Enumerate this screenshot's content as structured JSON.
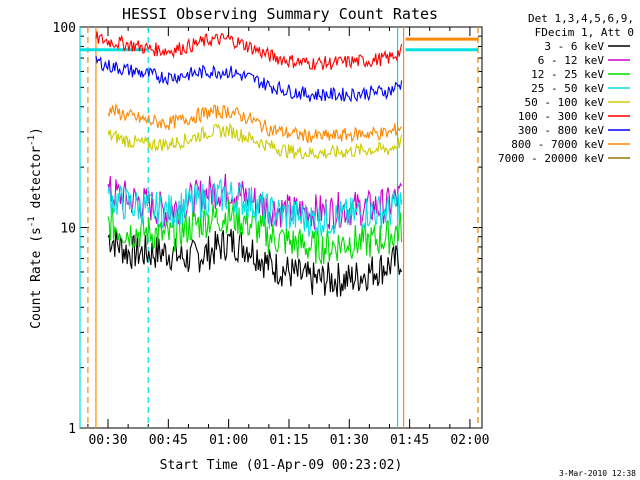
{
  "chart_data": {
    "type": "line",
    "title": "HESSI Observing Summary Count Rates",
    "xlabel": "Start Time (01-Apr-09 00:23:02)",
    "ylabel": "Count Rate (s",
    "ylabel_sup": "-1",
    "ylabel_tail": " detector",
    "ylabel_sup2": "-1",
    "ylabel_end": ")",
    "y_scale": "log",
    "ylim": [
      1,
      100
    ],
    "xlim": [
      "00:23:02",
      "02:03:00"
    ],
    "x_ticks": [
      "00:30",
      "00:45",
      "01:00",
      "01:15",
      "01:30",
      "01:45",
      "02:00"
    ],
    "y_ticks": [
      "1",
      "10",
      "100"
    ],
    "legend_header": [
      "Det 1,3,4,5,6,9,",
      "FDecim 1, Att 0"
    ],
    "legend_position": "right",
    "series": [
      {
        "name": "3 - 6 keV",
        "color": "#000000",
        "x": [
          "00:30",
          "00:35",
          "00:40",
          "00:45",
          "00:50",
          "00:55",
          "01:00",
          "01:05",
          "01:10",
          "01:15",
          "01:20",
          "01:25",
          "01:30",
          "01:35",
          "01:40",
          "01:43"
        ],
        "y": [
          9.0,
          7.5,
          7.5,
          7.5,
          7.0,
          7.5,
          8.5,
          8.0,
          6.5,
          6.0,
          5.5,
          5.5,
          5.5,
          6.0,
          6.5,
          7.0
        ]
      },
      {
        "name": "6 - 12 keV",
        "color": "#cc00cc",
        "x": [
          "00:30",
          "00:35",
          "00:40",
          "00:45",
          "00:50",
          "00:55",
          "01:00",
          "01:05",
          "01:10",
          "01:15",
          "01:20",
          "01:25",
          "01:30",
          "01:35",
          "01:40",
          "01:43"
        ],
        "y": [
          15.0,
          14.0,
          13.0,
          12.0,
          13.5,
          15.0,
          15.5,
          14.0,
          12.5,
          12.0,
          12.0,
          12.0,
          12.5,
          12.5,
          13.0,
          14.5
        ]
      },
      {
        "name": "12 - 25 keV",
        "color": "#00dd00",
        "x": [
          "00:30",
          "00:35",
          "00:40",
          "00:45",
          "00:50",
          "00:55",
          "01:00",
          "01:05",
          "01:10",
          "01:15",
          "01:20",
          "01:25",
          "01:30",
          "01:35",
          "01:40",
          "01:43"
        ],
        "y": [
          10.5,
          9.5,
          9.5,
          9.0,
          10.0,
          11.0,
          11.5,
          10.5,
          9.0,
          8.5,
          8.0,
          8.0,
          8.5,
          8.5,
          9.0,
          10.0
        ]
      },
      {
        "name": "25 - 50 keV",
        "color": "#00e0e0",
        "x": [
          "00:30",
          "00:35",
          "00:40",
          "00:45",
          "00:50",
          "00:55",
          "01:00",
          "01:05",
          "01:10",
          "01:15",
          "01:20",
          "01:25",
          "01:30",
          "01:35",
          "01:40",
          "01:43"
        ],
        "y": [
          14.0,
          13.0,
          12.5,
          12.0,
          13.0,
          14.0,
          14.5,
          13.5,
          12.0,
          11.5,
          11.0,
          11.0,
          11.5,
          12.0,
          12.0,
          13.5
        ]
      },
      {
        "name": "50 - 100 keV",
        "color": "#cccc00",
        "x": [
          "00:30",
          "00:35",
          "00:40",
          "00:45",
          "00:50",
          "00:55",
          "01:00",
          "01:05",
          "01:10",
          "01:15",
          "01:20",
          "01:25",
          "01:30",
          "01:35",
          "01:40",
          "01:43"
        ],
        "y": [
          29.0,
          27.0,
          26.0,
          26.0,
          27.5,
          30.0,
          30.5,
          28.0,
          25.5,
          24.0,
          23.5,
          23.5,
          24.0,
          24.5,
          24.5,
          27.0
        ]
      },
      {
        "name": "100 - 300 keV",
        "color": "#ff0000",
        "x": [
          "00:27",
          "00:30",
          "00:35",
          "00:40",
          "00:45",
          "00:50",
          "00:55",
          "01:00",
          "01:05",
          "01:10",
          "01:15",
          "01:20",
          "01:25",
          "01:30",
          "01:35",
          "01:40",
          "01:43"
        ],
        "y": [
          88.0,
          85.0,
          82.0,
          78.0,
          76.0,
          80.0,
          86.0,
          87.0,
          80.0,
          72.0,
          68.0,
          66.0,
          66.0,
          67.0,
          68.0,
          70.0,
          76.0
        ]
      },
      {
        "name": "300 - 800 keV",
        "color": "#0000ff",
        "x": [
          "00:27",
          "00:30",
          "00:35",
          "00:40",
          "00:45",
          "00:50",
          "00:55",
          "01:00",
          "01:05",
          "01:10",
          "01:15",
          "01:20",
          "01:25",
          "01:30",
          "01:35",
          "01:40",
          "01:43"
        ],
        "y": [
          68.0,
          64.0,
          61.0,
          58.0,
          56.0,
          58.0,
          60.0,
          60.0,
          56.0,
          51.0,
          48.0,
          46.0,
          46.0,
          46.0,
          47.0,
          48.0,
          52.0
        ]
      },
      {
        "name": "800 - 7000 keV",
        "color": "#ff8800",
        "x": [
          "00:30",
          "00:35",
          "00:40",
          "00:45",
          "00:50",
          "00:55",
          "01:00",
          "01:05",
          "01:10",
          "01:15",
          "01:20",
          "01:25",
          "01:30",
          "01:35",
          "01:40",
          "01:43"
        ],
        "y": [
          39.0,
          36.0,
          34.0,
          33.0,
          35.0,
          37.5,
          38.0,
          35.0,
          31.0,
          29.5,
          28.5,
          28.5,
          29.0,
          29.5,
          29.5,
          32.0
        ]
      },
      {
        "name": "7000 - 20000 keV",
        "color": "#997700",
        "x": [],
        "y": []
      }
    ],
    "markers": [
      {
        "kind": "cyan-solid",
        "color": "#00e0e0",
        "x": [
          "00:23:02",
          "01:42:00"
        ]
      },
      {
        "kind": "cyan-dashed",
        "color": "#00e0e0",
        "x": [
          "00:40:00",
          "02:02:00"
        ]
      },
      {
        "kind": "orange-dashed",
        "color": "#ff8800",
        "x": [
          "00:25:00",
          "02:02:00"
        ]
      },
      {
        "kind": "orange-solid",
        "color": "#ff8800",
        "x": [
          "00:27:00",
          "01:43:30"
        ]
      }
    ],
    "attenuator_segments": [
      {
        "color": "#00e0e0",
        "from": "00:23:02",
        "to": "00:40:00",
        "y": 77
      },
      {
        "color": "#00e0e0",
        "from": "01:44:00",
        "to": "02:02:00",
        "y": 77
      },
      {
        "color": "#ff8800",
        "from": "01:44:00",
        "to": "02:02:00",
        "y": 87
      }
    ],
    "grid": false
  },
  "footer": {
    "timestamp": "3-Mar-2010 12:38"
  }
}
